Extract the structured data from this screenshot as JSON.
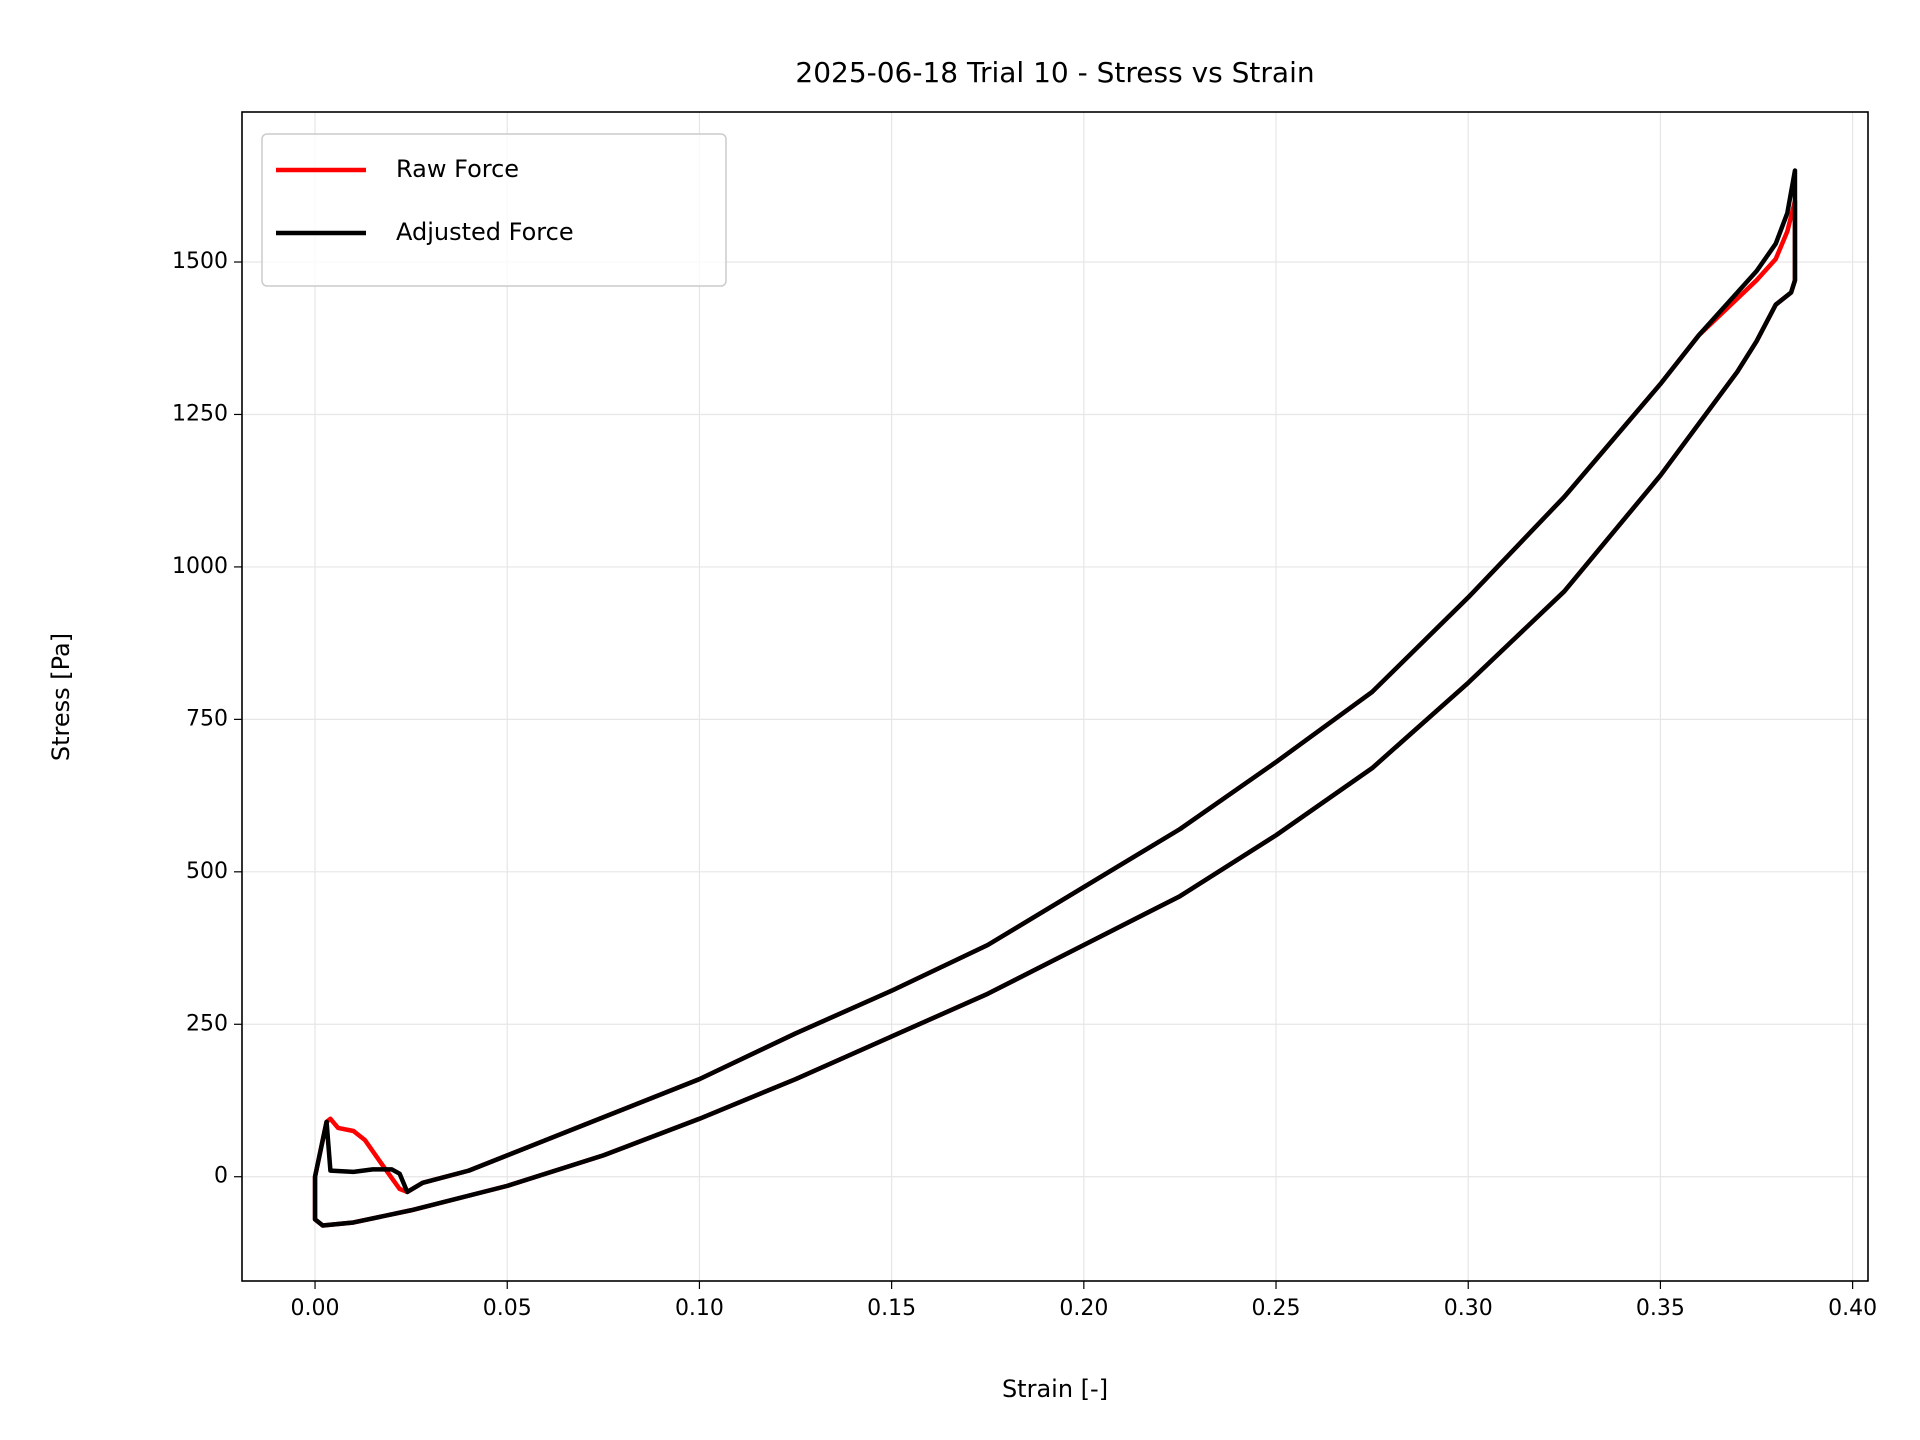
{
  "chart_data": {
    "type": "line",
    "title": "2025-06-18 Trial 10 - Stress vs Strain",
    "xlabel": "Strain [-]",
    "ylabel": "Stress [Pa]",
    "xlim": [
      -0.019,
      0.404
    ],
    "ylim": [
      -171,
      1746
    ],
    "xticks": [
      {
        "value": 0,
        "label": "0.00"
      },
      {
        "value": 0.05,
        "label": "0.05"
      },
      {
        "value": 0.1,
        "label": "0.10"
      },
      {
        "value": 0.15,
        "label": "0.15"
      },
      {
        "value": 0.2,
        "label": "0.20"
      },
      {
        "value": 0.25,
        "label": "0.25"
      },
      {
        "value": 0.3,
        "label": "0.30"
      },
      {
        "value": 0.35,
        "label": "0.35"
      },
      {
        "value": 0.4,
        "label": "0.40"
      }
    ],
    "yticks": [
      0,
      250,
      500,
      750,
      1000,
      1250,
      1500
    ],
    "grid": true,
    "legend": "upper left",
    "series": [
      {
        "name": "Raw Force",
        "color": "#ff0000",
        "x": [
          0,
          0,
          0.002,
          0.003,
          0.004,
          0.006,
          0.01,
          0.013,
          0.018,
          0.022,
          0.024,
          0.028,
          0.04,
          0.05,
          0.07,
          0.1,
          0.125,
          0.15,
          0.175,
          0.2,
          0.225,
          0.25,
          0.275,
          0.3,
          0.325,
          0.35,
          0.36,
          0.37,
          0.375,
          0.38,
          0.383,
          0.385,
          0.385,
          0.384,
          0.38,
          0.375,
          0.37,
          0.35,
          0.325,
          0.3,
          0.275,
          0.25,
          0.225,
          0.2,
          0.175,
          0.15,
          0.125,
          0.1,
          0.075,
          0.05,
          0.025,
          0.01,
          0.002,
          0
        ],
        "values": [
          -70,
          0,
          60,
          90,
          95,
          80,
          75,
          60,
          15,
          -20,
          -25,
          -10,
          10,
          35,
          85,
          160,
          235,
          305,
          380,
          475,
          570,
          680,
          795,
          950,
          1115,
          1300,
          1380,
          1440,
          1470,
          1505,
          1550,
          1600,
          1470,
          1450,
          1430,
          1370,
          1320,
          1150,
          960,
          810,
          670,
          560,
          460,
          380,
          300,
          230,
          160,
          95,
          35,
          -15,
          -55,
          -75,
          -80,
          -70
        ]
      },
      {
        "name": "Adjusted Force",
        "color": "#000000",
        "x": [
          0,
          0,
          0.002,
          0.003,
          0.004,
          0.01,
          0.015,
          0.02,
          0.022,
          0.024,
          0.028,
          0.04,
          0.05,
          0.07,
          0.1,
          0.125,
          0.15,
          0.175,
          0.2,
          0.225,
          0.25,
          0.275,
          0.3,
          0.325,
          0.35,
          0.36,
          0.37,
          0.375,
          0.38,
          0.383,
          0.385,
          0.385,
          0.384,
          0.38,
          0.375,
          0.37,
          0.35,
          0.325,
          0.3,
          0.275,
          0.25,
          0.225,
          0.2,
          0.175,
          0.15,
          0.125,
          0.1,
          0.075,
          0.05,
          0.025,
          0.01,
          0.002,
          0
        ],
        "values": [
          -70,
          0,
          60,
          90,
          10,
          8,
          12,
          12,
          5,
          -25,
          -10,
          10,
          35,
          85,
          160,
          235,
          305,
          380,
          475,
          570,
          680,
          795,
          950,
          1115,
          1300,
          1380,
          1450,
          1485,
          1530,
          1580,
          1650,
          1470,
          1450,
          1430,
          1370,
          1320,
          1150,
          960,
          810,
          670,
          560,
          460,
          380,
          300,
          230,
          160,
          95,
          35,
          -15,
          -55,
          -75,
          -80,
          -70
        ]
      }
    ]
  }
}
